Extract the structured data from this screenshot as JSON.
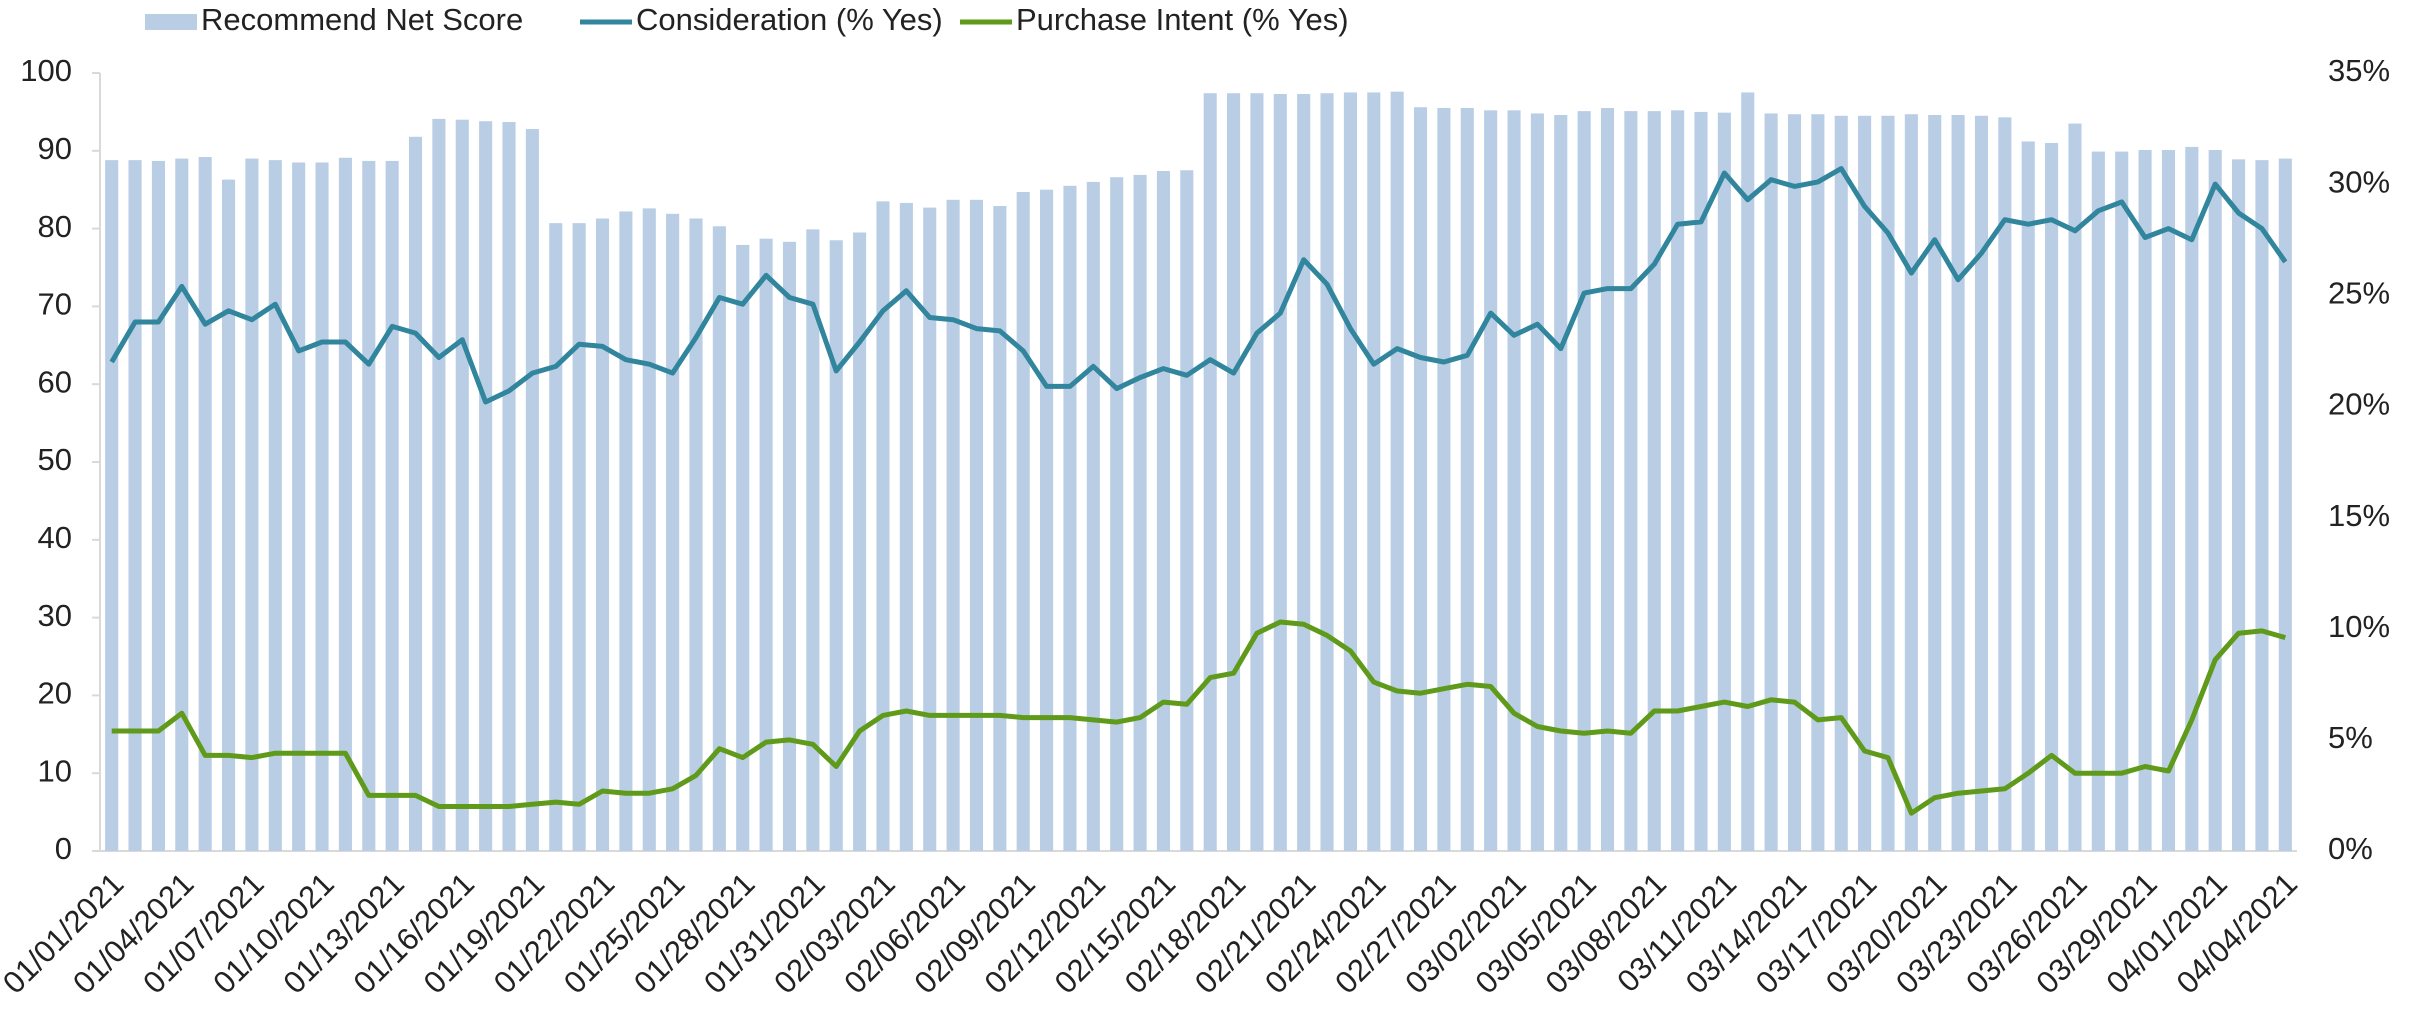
{
  "chart_data": {
    "type": "bar_line",
    "categories": [
      "01/01/2021",
      null,
      null,
      "01/04/2021",
      null,
      null,
      "01/07/2021",
      null,
      null,
      "01/10/2021",
      null,
      null,
      "01/13/2021",
      null,
      null,
      "01/16/2021",
      null,
      null,
      "01/19/2021",
      null,
      null,
      "01/22/2021",
      null,
      null,
      "01/25/2021",
      null,
      null,
      "01/28/2021",
      null,
      null,
      "01/31/2021",
      null,
      null,
      "02/03/2021",
      null,
      null,
      "02/06/2021",
      null,
      null,
      "02/09/2021",
      null,
      null,
      "02/12/2021",
      null,
      null,
      "02/15/2021",
      null,
      null,
      "02/18/2021",
      null,
      null,
      "02/21/2021",
      null,
      null,
      "02/24/2021",
      null,
      null,
      "02/27/2021",
      null,
      null,
      "03/02/2021",
      null,
      null,
      "03/05/2021",
      null,
      null,
      "03/08/2021",
      null,
      null,
      "03/11/2021",
      null,
      null,
      "03/14/2021",
      null,
      null,
      "03/17/2021",
      null,
      null,
      "03/20/2021",
      null,
      null,
      "03/23/2021",
      null,
      null,
      "03/26/2021",
      null,
      null,
      "03/29/2021",
      null,
      null,
      "04/01/2021",
      null,
      null,
      "04/04/2021"
    ],
    "series": [
      {
        "name": "Recommend Net Score",
        "kind": "bar",
        "color": "#b9cde5",
        "axis": "y",
        "values": [
          88.8,
          88.8,
          88.7,
          89,
          89.2,
          86.3,
          89,
          88.8,
          88.5,
          88.5,
          89.1,
          88.7,
          88.7,
          91.8,
          94.1,
          94,
          93.8,
          93.7,
          92.8,
          80.7,
          80.7,
          81.3,
          82.2,
          82.6,
          81.9,
          81.3,
          80.3,
          77.9,
          78.7,
          78.3,
          79.9,
          78.5,
          79.5,
          83.5,
          83.3,
          82.7,
          83.7,
          83.7,
          82.9,
          84.7,
          85,
          85.5,
          86,
          86.6,
          86.9,
          87.4,
          87.5,
          97.4,
          97.4,
          97.4,
          97.3,
          97.3,
          97.4,
          97.5,
          97.5,
          97.6,
          95.6,
          95.5,
          95.5,
          95.2,
          95.2,
          94.8,
          94.6,
          95.1,
          95.5,
          95.1,
          95.1,
          95.2,
          95,
          94.9,
          97.5,
          94.8,
          94.7,
          94.7,
          94.5,
          94.5,
          94.5,
          94.7,
          94.6,
          94.6,
          94.5,
          94.3,
          91.2,
          91,
          93.5,
          89.9,
          89.9,
          90.1,
          90.1,
          90.5,
          90.1,
          88.9,
          88.8,
          89
        ]
      },
      {
        "name": "Consideration (% Yes)",
        "kind": "line",
        "color": "#31859c",
        "axis": "y2",
        "values": [
          22.0,
          23.8,
          23.8,
          25.4,
          23.7,
          24.3,
          23.9,
          24.6,
          22.5,
          22.9,
          22.9,
          21.9,
          23.6,
          23.3,
          22.2,
          23.0,
          20.2,
          20.7,
          21.5,
          21.8,
          22.8,
          22.7,
          22.1,
          21.9,
          21.5,
          23.1,
          24.9,
          24.6,
          25.9,
          24.9,
          24.6,
          21.6,
          22.9,
          24.3,
          25.2,
          24.0,
          23.9,
          23.5,
          23.4,
          22.5,
          20.9,
          20.9,
          21.8,
          20.8,
          21.3,
          21.7,
          21.4,
          22.1,
          21.5,
          23.3,
          24.2,
          26.6,
          25.5,
          23.5,
          21.9,
          22.6,
          22.2,
          22.0,
          22.3,
          24.2,
          23.2,
          23.7,
          22.6,
          25.1,
          25.3,
          25.3,
          26.4,
          28.2,
          28.3,
          30.5,
          29.3,
          30.2,
          29.9,
          30.1,
          30.7,
          29.0,
          27.8,
          26.0,
          27.5,
          25.7,
          26.9,
          28.4,
          28.2,
          28.4,
          27.9,
          28.8,
          29.2,
          27.6,
          28.0,
          27.5,
          30.0,
          28.7,
          28.0,
          26.5
        ]
      },
      {
        "name": "Purchase Intent (% Yes)",
        "kind": "line",
        "color": "#5f9a1a",
        "axis": "y2",
        "values": [
          5.4,
          5.4,
          5.4,
          6.2,
          4.3,
          4.3,
          4.2,
          4.4,
          4.4,
          4.4,
          4.4,
          2.5,
          2.5,
          2.5,
          2.0,
          2.0,
          2.0,
          2.0,
          2.1,
          2.2,
          2.1,
          2.7,
          2.6,
          2.6,
          2.8,
          3.4,
          4.6,
          4.2,
          4.9,
          5.0,
          4.8,
          3.8,
          5.4,
          6.1,
          6.3,
          6.1,
          6.1,
          6.1,
          6.1,
          6.0,
          6.0,
          6.0,
          5.9,
          5.8,
          6.0,
          6.7,
          6.6,
          7.8,
          8.0,
          9.8,
          10.3,
          10.2,
          9.7,
          9.0,
          7.6,
          7.2,
          7.1,
          7.3,
          7.5,
          7.4,
          6.2,
          5.6,
          5.4,
          5.3,
          5.4,
          5.3,
          6.3,
          6.3,
          6.5,
          6.7,
          6.5,
          6.8,
          6.7,
          5.9,
          6.0,
          4.5,
          4.2,
          1.7,
          2.4,
          2.6,
          2.7,
          2.8,
          3.5,
          4.3,
          3.5,
          3.5,
          3.5,
          3.8,
          3.6,
          5.9,
          8.6,
          9.8,
          9.9,
          9.6
        ]
      }
    ],
    "ylim": [
      0,
      100
    ],
    "yticks": [
      0,
      10,
      20,
      30,
      40,
      50,
      60,
      70,
      80,
      90,
      100
    ],
    "y2lim": [
      0,
      35
    ],
    "y2ticks": [
      {
        "value": 0,
        "label": "0%"
      },
      {
        "value": 5,
        "label": "5%"
      },
      {
        "value": 10,
        "label": "10%"
      },
      {
        "value": 15,
        "label": "15%"
      },
      {
        "value": 20,
        "label": "20%"
      },
      {
        "value": 25,
        "label": "25%"
      },
      {
        "value": 30,
        "label": "30%"
      },
      {
        "value": 35,
        "label": "35%"
      }
    ],
    "legend": "top"
  }
}
